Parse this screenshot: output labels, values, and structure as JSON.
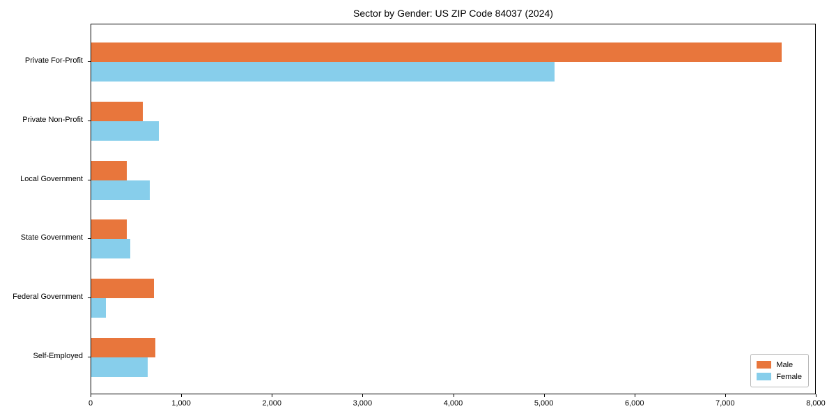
{
  "title": "Sector by Gender: US ZIP Code 84037 (2024)",
  "chart_data": {
    "type": "bar",
    "orientation": "horizontal",
    "title": "Sector by Gender: US ZIP Code 84037 (2024)",
    "categories": [
      "Private For-Profit",
      "Private Non-Profit",
      "Local Government",
      "State Government",
      "Federal Government",
      "Self-Employed"
    ],
    "series": [
      {
        "name": "Male",
        "color": "#e8763c",
        "values": [
          7630,
          570,
          390,
          390,
          690,
          710
        ]
      },
      {
        "name": "Female",
        "color": "#87ceeb",
        "values": [
          5120,
          750,
          650,
          430,
          160,
          620
        ]
      }
    ],
    "xlim": [
      0,
      8000
    ],
    "xticks": [
      0,
      1000,
      2000,
      3000,
      4000,
      5000,
      6000,
      7000,
      8000
    ],
    "xtick_labels": [
      "0",
      "1,000",
      "2,000",
      "3,000",
      "4,000",
      "5,000",
      "6,000",
      "7,000",
      "8,000"
    ],
    "xlabel": "",
    "ylabel": "",
    "grid": false,
    "legend_position": "lower right"
  },
  "legend": {
    "items": [
      {
        "label": "Male",
        "color": "#e8763c"
      },
      {
        "label": "Female",
        "color": "#87ceeb"
      }
    ]
  }
}
